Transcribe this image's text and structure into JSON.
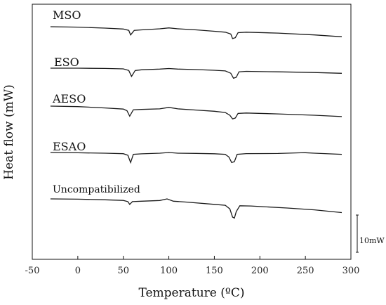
{
  "chart_data": {
    "type": "line",
    "xlabel": "Temperature (ºC)",
    "ylabel": "Heat flow (mW)",
    "xlim": [
      -50,
      300
    ],
    "x_ticks": [
      "-50",
      "0",
      "50",
      "100",
      "150",
      "200",
      "250",
      "300"
    ],
    "x_tick_values": [
      -50,
      0,
      50,
      100,
      150,
      200,
      250,
      300
    ],
    "scale_bar_label": "10mW",
    "grid": false,
    "series": [
      {
        "name": "MSO",
        "x": [
          -30,
          0,
          30,
          50,
          56,
          58,
          62,
          70,
          90,
          100,
          110,
          130,
          150,
          162,
          168,
          170,
          173,
          176,
          185,
          220,
          260,
          290
        ],
        "y": [
          0.0,
          -0.5,
          -1.5,
          -2.5,
          -4.0,
          -9.0,
          -4.0,
          -3.5,
          -2.3,
          -1.3,
          -2.3,
          -3.5,
          -5.0,
          -6.0,
          -8.0,
          -13.0,
          -12.0,
          -6.5,
          -6.0,
          -7.0,
          -9.0,
          -11.0
        ]
      },
      {
        "name": "ESO",
        "x": [
          -30,
          0,
          30,
          50,
          56,
          59,
          63,
          70,
          90,
          100,
          110,
          130,
          150,
          162,
          168,
          171,
          174,
          177,
          185,
          220,
          260,
          290
        ],
        "y": [
          0.0,
          0.0,
          -0.3,
          -0.8,
          -2.5,
          -9.0,
          -2.5,
          -1.8,
          -1.0,
          -0.4,
          -1.0,
          -1.5,
          -2.3,
          -3.0,
          -5.5,
          -11.0,
          -10.0,
          -4.0,
          -3.5,
          -4.0,
          -4.8,
          -5.6
        ]
      },
      {
        "name": "AESO",
        "x": [
          -30,
          0,
          30,
          50,
          54,
          57,
          61,
          70,
          90,
          100,
          110,
          130,
          150,
          162,
          167,
          170,
          173,
          176,
          185,
          220,
          260,
          290
        ],
        "y": [
          0.0,
          -0.5,
          -2.0,
          -3.2,
          -5.0,
          -11.0,
          -4.0,
          -3.6,
          -3.0,
          -1.4,
          -3.0,
          -4.3,
          -5.6,
          -7.0,
          -10.0,
          -14.0,
          -13.0,
          -8.0,
          -7.5,
          -8.5,
          -10.0,
          -11.5
        ]
      },
      {
        "name": "ESAO",
        "x": [
          -30,
          0,
          30,
          50,
          55,
          58,
          61,
          70,
          90,
          100,
          110,
          130,
          150,
          162,
          166,
          169,
          172,
          175,
          185,
          220,
          245,
          250,
          260,
          290
        ],
        "y": [
          0.0,
          -0.3,
          -0.8,
          -1.3,
          -3.0,
          -11.0,
          -2.0,
          -1.5,
          -0.8,
          0.0,
          -0.8,
          -1.0,
          -1.4,
          -2.0,
          -5.0,
          -11.0,
          -10.0,
          -2.0,
          -1.2,
          -1.1,
          -0.3,
          -0.2,
          -0.8,
          -2.0
        ]
      },
      {
        "name": "Uncompatibilized",
        "x": [
          -30,
          0,
          30,
          50,
          55,
          57,
          60,
          70,
          90,
          98,
          105,
          120,
          150,
          162,
          167,
          170,
          172,
          174,
          178,
          190,
          230,
          260,
          290
        ],
        "y": [
          0.0,
          -0.3,
          -1.0,
          -1.7,
          -3.0,
          -6.0,
          -3.0,
          -2.5,
          -1.8,
          0.0,
          -2.5,
          -3.5,
          -6.0,
          -7.0,
          -11.0,
          -20.0,
          -21.0,
          -14.0,
          -7.5,
          -7.8,
          -10.0,
          -12.0,
          -15.0
        ]
      }
    ]
  }
}
